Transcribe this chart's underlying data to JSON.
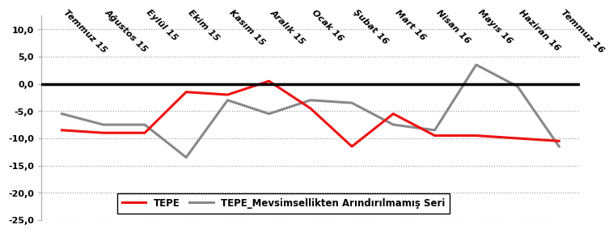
{
  "categories": [
    "Temmuz 15",
    "Ağustos 15",
    "Eylül 15",
    "Ekim 15",
    "Kasım 15",
    "Aralık 15",
    "Ocak 16",
    "Şubat 16",
    "Mart 16",
    "Nisan 16",
    "Mayıs 16",
    "Haziran 16",
    "Temmuz 16"
  ],
  "tepe": [
    -8.5,
    -9.0,
    -9.0,
    -1.5,
    -2.0,
    0.5,
    -4.5,
    -11.5,
    -5.5,
    -9.5,
    -9.5,
    -10.0,
    -10.5
  ],
  "tepe_mevs": [
    -5.5,
    -7.5,
    -7.5,
    -13.5,
    -3.0,
    -5.5,
    -3.0,
    -3.5,
    -7.5,
    -8.5,
    3.5,
    -0.5,
    -11.5
  ],
  "tepe_color": "#ee1111",
  "mevs_color": "#888888",
  "ylim": [
    -25.0,
    12.5
  ],
  "yticks": [
    -25,
    -20,
    -15,
    -10,
    -5,
    0,
    5,
    10
  ],
  "ytick_labels": [
    "-25,0",
    "-20,0",
    "-15,0",
    "-10,0",
    "-5,0",
    "0,0",
    "5,0",
    "10,0"
  ],
  "grid_color": "#999999",
  "bg_color": "#ffffff",
  "legend_tepe": "TEPE",
  "legend_mevs": "TEPE_Mevsimsellikten Arındırılmamış Seri",
  "line_width": 2.2
}
